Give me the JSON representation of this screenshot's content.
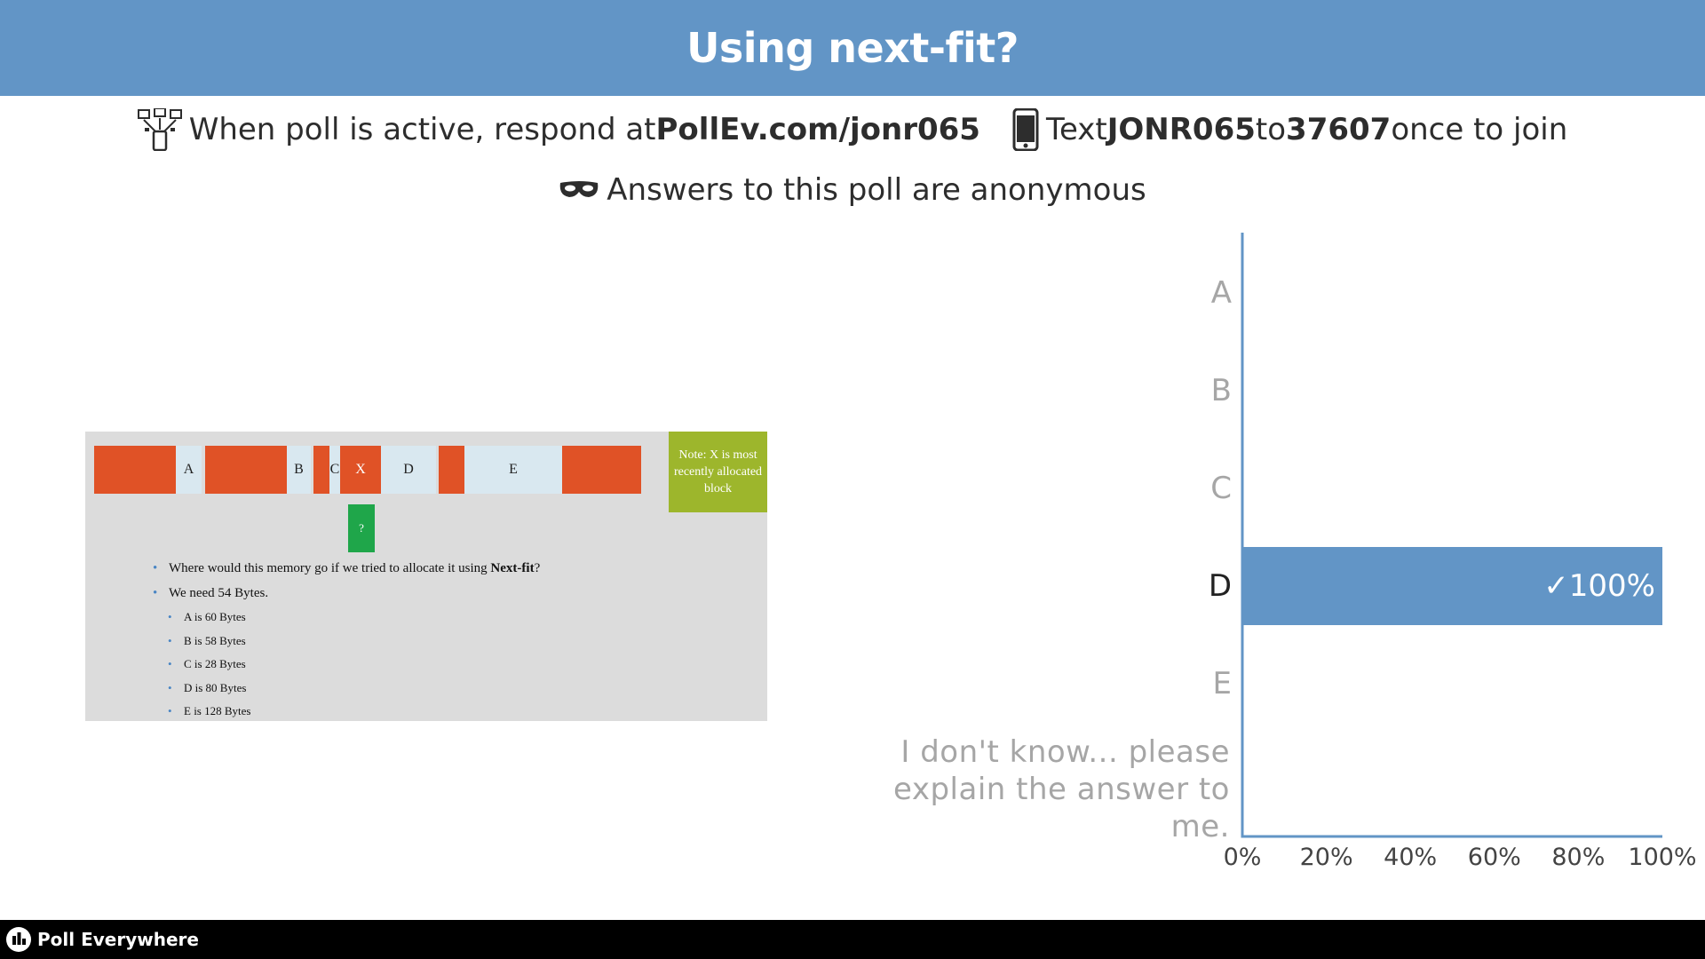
{
  "header": {
    "title": "Using next-fit?"
  },
  "instructions": {
    "respond_prefix": "When poll is active, respond at ",
    "respond_url": "PollEv.com/jonr065",
    "text_prefix": "Text ",
    "text_code": "JONR065",
    "text_mid": " to ",
    "text_number": "37607",
    "text_suffix": " once to join",
    "anonymous": "Answers to this poll are anonymous"
  },
  "slide": {
    "blocks": [
      "A",
      "B",
      "C",
      "X",
      "D",
      "E"
    ],
    "note": "Note: X is most recently allocated block",
    "question_box": "?",
    "bullet_1_prefix": "Where would this memory go if we tried to allocate it using ",
    "bullet_1_bold": "Next-fit",
    "bullet_1_suffix": "?",
    "bullet_2": "We need 54 Bytes.",
    "sub_bullets": [
      "A is 60 Bytes",
      "B is 58 Bytes",
      "C is 28 Bytes",
      "D is 80 Bytes",
      "E is 128 Bytes"
    ]
  },
  "chart_data": {
    "type": "bar",
    "orientation": "horizontal",
    "categories": [
      "A",
      "B",
      "C",
      "D",
      "E",
      "I don't know... please explain the answer to me."
    ],
    "values": [
      0,
      0,
      0,
      100,
      0,
      0
    ],
    "correct": "D",
    "value_label": "✓100%",
    "x_ticks": [
      "0%",
      "20%",
      "40%",
      "60%",
      "80%",
      "100%"
    ],
    "xlim": [
      0,
      100
    ],
    "bar_color": "#6295c6"
  },
  "footer": {
    "brand": "Poll Everywhere"
  },
  "colors": {
    "header": "#6295c6",
    "used_block": "#e05226",
    "free_block": "#d9e8f0",
    "note": "#9db62c",
    "question": "#1fa64a"
  }
}
